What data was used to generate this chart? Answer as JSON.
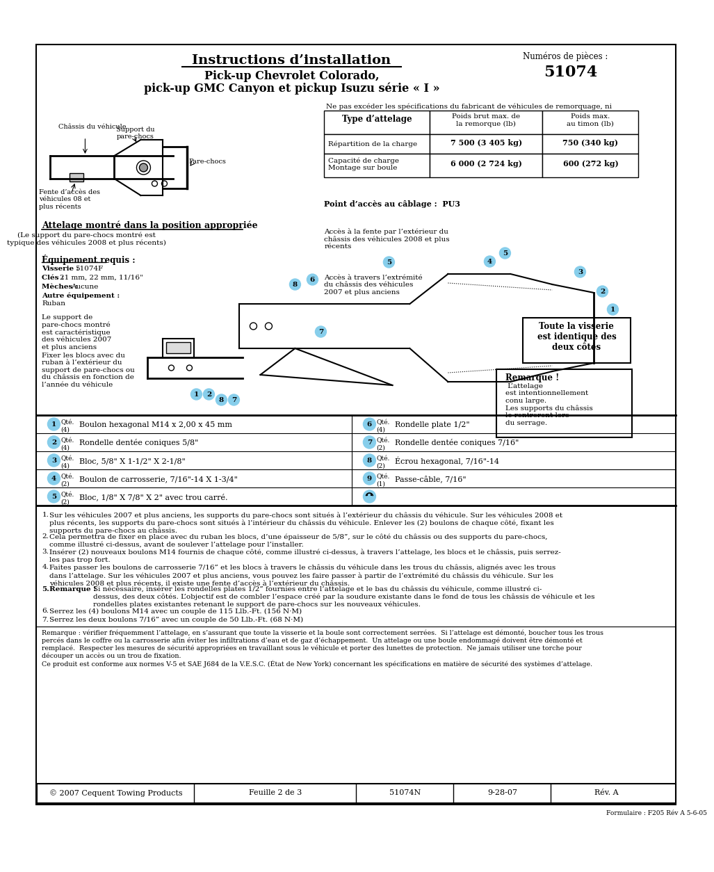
{
  "title": "Instructions d’installation",
  "part_numbers_label": "Numéros de pièces :",
  "part_number": "51074",
  "subtitle1": "Pick-up Chevrolet Colorado,",
  "subtitle2": "pick-up GMC Canyon et pickup Isuzu série « I »",
  "warning_text": "Ne pas excéder les spécifications du fabricant de véhicules de remorquage, ni",
  "table_col1_header": "Type d’attelage",
  "table_col2_header": "Poids brut max. de\nla remorque (lb)",
  "table_col3_header": "Poids max.\nau timon (lb)",
  "table_row1_c1": "Répartition de la charge",
  "table_row1_c2": "7 500 (3 405 kg)",
  "table_row1_c3": "750 (340 kg)",
  "table_row2_c1": "Capacité de charge\nMontage sur boule",
  "table_row2_c2": "6 000 (2 724 kg)",
  "table_row2_c3": "600 (272 kg)",
  "cable_point": "Point d’accès au câblage :  PU3",
  "hitch_title": "Attelage montré dans la position appropriée",
  "hitch_sub": "(Le support du pare-chocs montré est\ntypique des véhicules 2008 et plus récents)",
  "chassis_label": "Châssis du véhicule",
  "support_label": "Support du\npare-chocs",
  "fente_label": "Fente d’accès des\nvéhicules 08 et\nplus récents",
  "pare_chocs_label": "Pare-chocs",
  "acces_exterieur": "Accès à la fente par l’extérieur du\nchâssis des véhicules 2008 et plus\nrécents",
  "acces_extremite": "Accès à travers l’extrémité\ndu châssis des véhicules\n2007 et plus anciens",
  "equip_title": "Équipement requis :",
  "visserie_label": "Visserie :",
  "visserie_val": "51074F",
  "cles_label": "Clés :",
  "cles_val": "21 mm, 22 mm, 11/16\"",
  "meches_label": "Mèches :",
  "meches_val": "Aucune",
  "autre_label": "Autre équipement :",
  "autre_val": "Ruban",
  "support_text": "Le support de\npare-chocs montré\nest caractéristique\ndes véhicules 2007\net plus anciens",
  "fixer_text": "Fixer les blocs avec du\nruban à l’extérieur du\nsupport de pare-chocs ou\ndu châssis en fonction de\nl’année du véhicule",
  "toute_text": "Toute la visserie\nest identique des\ndeux côtés",
  "remarque_box_title": "Remarque !",
  "remarque_box_text": " L’attelage\nest intentionnellement\nconu large.\nLes supports du châssis\nle rentreront lors\ndu serrage.",
  "parts_list": [
    {
      "num": "1",
      "qty": "(4)",
      "desc": "Boulon hexagonal M14 x 2,00 x 45 mm"
    },
    {
      "num": "2",
      "qty": "(4)",
      "desc": "Rondelle dentée coniques 5/8\""
    },
    {
      "num": "3",
      "qty": "(4)",
      "desc": "Bloc, 5/8\" X 1-1/2\" X 2-1/8\""
    },
    {
      "num": "4",
      "qty": "(2)",
      "desc": "Boulon de carrosserie, 7/16\"-14 X 1-3/4\""
    },
    {
      "num": "5",
      "qty": "(2)",
      "desc": "Bloc, 1/8\" X 7/8\" X 2\" avec trou carré."
    },
    {
      "num": "6",
      "qty": "(4)",
      "desc": "Rondelle plate 1/2\""
    },
    {
      "num": "7",
      "qty": "(2)",
      "desc": "Rondelle dentée coniques 7/16\""
    },
    {
      "num": "8",
      "qty": "(2)",
      "desc": "Écrou hexagonal, 7/16\"-14"
    },
    {
      "num": "9",
      "qty": "(1)",
      "desc": "Passe-câble, 7/16\""
    }
  ],
  "instructions": [
    "Sur les véhicules 2007 et plus anciens, les supports du pare-chocs sont situés à l’extérieur du châssis du véhicule. Sur les véhicules 2008 et\nplus récents, les supports du pare-chocs sont situés à l’intérieur du châssis du véhicule. Enlever les (2) boulons de chaque côté, fixant les\nsupports du pare-chocs au châssis.",
    "Cela permettra de fixer en place avec du ruban les blocs, d’une épaisseur de 5/8”, sur le côté du châssis ou des supports du pare-chocs,\ncomme illustré ci-dessus, avant de soulever l’attelage pour l’installer.",
    "Insérer (2) nouveaux boulons M14 fournis de chaque côté, comme illustré ci-dessus, à travers l’attelage, les blocs et le châssis, puis serrez-\nles pas trop fort.",
    "Faites passer les boulons de carrosserie 7/16” et les blocs à travers le châssis du véhicule dans les trous du châssis, alignés avec les trous\ndans l’attelage. Sur les véhicules 2007 et plus anciens, vous pouvez les faire passer à partir de l’extrémité du châssis du véhicule. Sur les\nvéhicules 2008 et plus récents, il existe une fente d’accès à l’extérieur du châssis.",
    "Si nécessaire, insérer les rondelles plates 1/2” fournies entre l’attelage et le bas du châssis du véhicule, comme illustré ci-\ndessus, des deux côtés. L’objectif est de combler l’espace créé par la soudure existante dans le fond de tous les châssis de véhicule et les\nrondelles plates existantes retenant le support de pare-chocs sur les nouveaux véhicules.",
    "Serrez les (4) boulons M14 avec un couple de 115 Llb.-Ft. (156 N·M)",
    "Serrez les deux boulons 7/16” avec un couple de 50 Llb.-Ft. (68 N·M)"
  ],
  "remarque_footer": "Remarque : vérifier fréquemment l’attelage, en s’assurant que toute la visserie et la boule sont correctement serrées.  Si l’attelage est démonté, boucher tous les trous\npercés dans le coffre ou la carrosserie afin éviter les infiltrations d’eau et de gaz d’échappement.  Un attelage ou une boule endommagé doivent être démonté et\nremplacé.  Respecter les mesures de sécurité appropriées en travaillant sous le véhicule et porter des lunettes de protection.  Ne jamais utiliser une torche pour\ndécouper un accès ou un trou de fixation.\nCe produit est conforme aux normes V-5 et SAE J684 de la V.E.S.C. (État de New York) concernant les spécifications en matière de sécurité des systèmes d’attelage.",
  "footer_left": "© 2007 Cequent Towing Products",
  "footer_mid1": "Feuille 2 de 3",
  "footer_mid2": "51074N",
  "footer_mid3": "9-28-07",
  "footer_right": "Rév. A",
  "formulaire": "Formulaire : F205 Rév A 5-6-05",
  "circle_color": "#87CEEB"
}
